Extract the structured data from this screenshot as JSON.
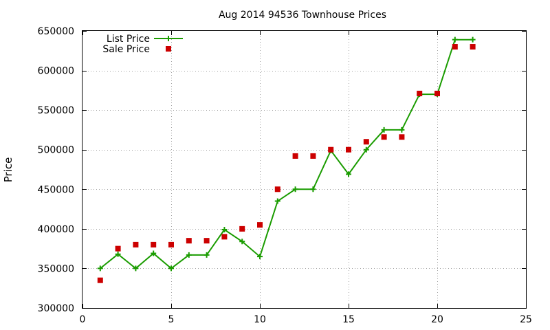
{
  "chart_data": {
    "type": "line",
    "title": "Aug 2014 94536 Townhouse Prices",
    "xlabel": "",
    "ylabel": "Price",
    "xlim": [
      0,
      25
    ],
    "ylim": [
      300000,
      650000
    ],
    "x_ticks": [
      0,
      5,
      10,
      15,
      20,
      25
    ],
    "y_ticks": [
      300000,
      350000,
      400000,
      450000,
      500000,
      550000,
      600000,
      650000
    ],
    "grid": true,
    "legend_position": "top-left",
    "series": [
      {
        "name": "List Price",
        "style": "line-with-plus-markers",
        "color": "#1a9c00",
        "x": [
          1,
          2,
          3,
          4,
          5,
          6,
          7,
          8,
          9,
          10,
          11,
          12,
          13,
          14,
          15,
          16,
          17,
          18,
          19,
          20,
          21,
          22
        ],
        "values": [
          350000,
          368000,
          350000,
          369000,
          350000,
          367000,
          367000,
          399000,
          384000,
          365000,
          435000,
          450000,
          450000,
          499000,
          469000,
          500000,
          525000,
          525000,
          570000,
          570000,
          639000,
          639000
        ]
      },
      {
        "name": "Sale Price",
        "style": "square-markers",
        "color": "#cc0000",
        "x": [
          1,
          2,
          3,
          4,
          5,
          6,
          7,
          8,
          9,
          10,
          11,
          12,
          13,
          14,
          15,
          16,
          17,
          18,
          19,
          20,
          21,
          22
        ],
        "values": [
          335000,
          375000,
          380000,
          380000,
          380000,
          385000,
          385000,
          390000,
          400000,
          405000,
          450000,
          492000,
          492000,
          500000,
          500000,
          510000,
          516000,
          516000,
          571000,
          571000,
          630000,
          630000
        ]
      }
    ]
  }
}
